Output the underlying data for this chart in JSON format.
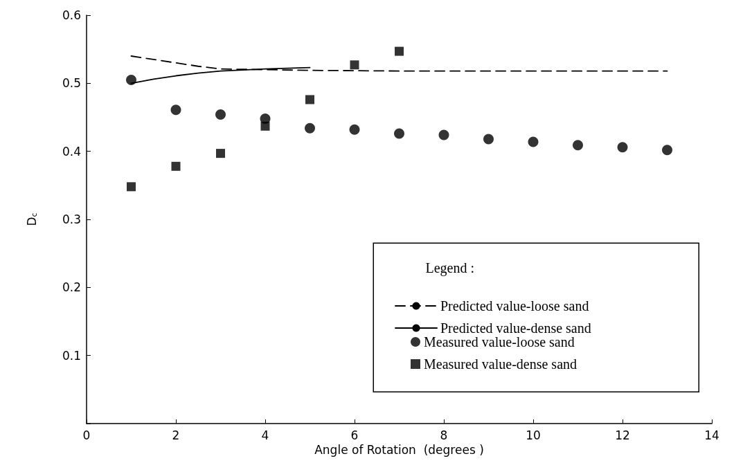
{
  "chart_data": {
    "type": "scatter",
    "xlabel": "Angle of Rotation  (degrees )",
    "ylabel": "D$_{c}$",
    "legend_title": "Legend :",
    "legend": "bottom right",
    "grid": false,
    "xlim": [
      0,
      14
    ],
    "xticks": [
      0,
      2,
      4,
      6,
      8,
      10,
      12,
      14
    ],
    "ylim": [
      0,
      0.6
    ],
    "yticks": [
      {
        "value": 0,
        "label": null
      },
      0.1,
      0.2,
      0.3,
      0.4,
      0.5,
      0.6
    ],
    "series": [
      {
        "name": "Predicted value-loose sand",
        "type": "line",
        "line_style": "dashed",
        "marker": "none",
        "color": "#000000",
        "x": [
          1,
          1.5,
          2,
          2.5,
          3,
          4,
          5,
          7,
          9,
          11,
          13
        ],
        "values": [
          0.54,
          0.535,
          0.53,
          0.525,
          0.521,
          0.52,
          0.519,
          0.518,
          0.518,
          0.518,
          0.518
        ]
      },
      {
        "name": "Predicted value-dense sand",
        "type": "line",
        "line_style": "solid",
        "marker": "none",
        "color": "#000000",
        "x": [
          1,
          1.5,
          2,
          2.5,
          3,
          4,
          5
        ],
        "values": [
          0.5,
          0.506,
          0.511,
          0.515,
          0.518,
          0.521,
          0.523
        ]
      },
      {
        "name": "Measured value-loose sand",
        "type": "scatter",
        "marker": "circle",
        "color": "#000000",
        "x": [
          1,
          2,
          3,
          4,
          5,
          6,
          7,
          8,
          9,
          10,
          11,
          12,
          13
        ],
        "values": [
          0.505,
          0.461,
          0.454,
          0.448,
          0.434,
          0.432,
          0.426,
          0.424,
          0.418,
          0.414,
          0.409,
          0.406,
          0.402
        ]
      },
      {
        "name": "Measured value-dense sand",
        "type": "scatter",
        "marker": "square",
        "color": "#000000",
        "x": [
          1,
          2,
          3,
          4,
          5,
          6,
          7
        ],
        "values": [
          0.348,
          0.378,
          0.397,
          0.437,
          0.476,
          0.527,
          0.547
        ]
      }
    ]
  }
}
